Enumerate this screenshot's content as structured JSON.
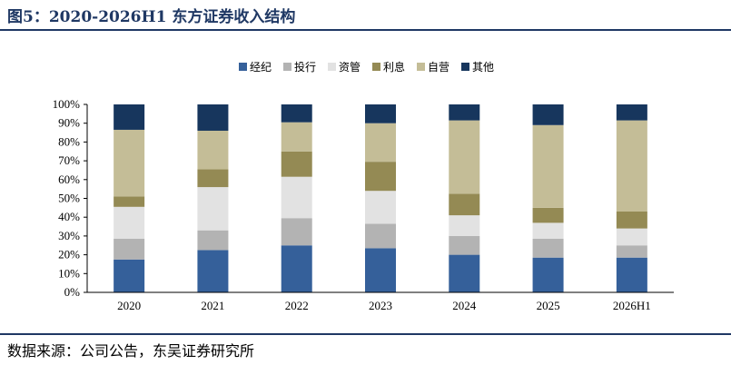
{
  "figure": {
    "title": "图5：2020-2026H1 东方证券收入结构",
    "source": "数据来源：公司公告，东吴证券研究所"
  },
  "chart_data": {
    "type": "bar",
    "stacked": true,
    "percent": true,
    "title": "",
    "xlabel": "",
    "ylabel": "",
    "ylim": [
      0,
      100
    ],
    "yticks": [
      "0%",
      "10%",
      "20%",
      "30%",
      "40%",
      "50%",
      "60%",
      "70%",
      "80%",
      "90%",
      "100%"
    ],
    "categories": [
      "2020",
      "2021",
      "2022",
      "2023",
      "2024",
      "2025",
      "2026H1"
    ],
    "legend": "top-center",
    "grid": false,
    "series": [
      {
        "name": "经纪",
        "color": "#35609a",
        "values": [
          17.5,
          22.5,
          25,
          23.5,
          20,
          18.5,
          18.5
        ]
      },
      {
        "name": "投行",
        "color": "#b3b3b3",
        "values": [
          11,
          10.5,
          14.5,
          13,
          10,
          10,
          6.5
        ]
      },
      {
        "name": "资管",
        "color": "#e2e2e2",
        "values": [
          17,
          23,
          22,
          17.5,
          11,
          8.5,
          9
        ]
      },
      {
        "name": "利息",
        "color": "#948a54",
        "values": [
          5.5,
          9.5,
          13.5,
          15.5,
          11.5,
          8,
          9
        ]
      },
      {
        "name": "自营",
        "color": "#c4bd97",
        "values": [
          35.5,
          20.5,
          15.5,
          20.5,
          39,
          44,
          48.5
        ]
      },
      {
        "name": "其他",
        "color": "#17365d",
        "values": [
          13.5,
          14,
          9.5,
          10,
          8.5,
          11,
          8.5
        ]
      }
    ]
  }
}
